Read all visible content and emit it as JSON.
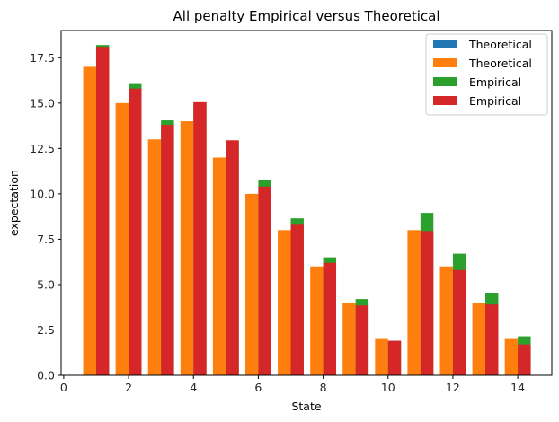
{
  "chart_data": {
    "type": "bar",
    "title": "All penalty Empirical versus Theoretical",
    "xlabel": "State",
    "ylabel": "expectation",
    "xlim": [
      0,
      15
    ],
    "ylim": [
      0,
      19
    ],
    "xticks": [
      0,
      2,
      4,
      6,
      8,
      10,
      12,
      14
    ],
    "yticks": [
      0.0,
      2.5,
      5.0,
      7.5,
      10.0,
      12.5,
      15.0,
      17.5
    ],
    "ytick_labels": [
      "0.0",
      "2.5",
      "5.0",
      "7.5",
      "10.0",
      "12.5",
      "15.0",
      "17.5"
    ],
    "states": [
      1,
      2,
      3,
      4,
      5,
      6,
      7,
      8,
      9,
      10,
      11,
      12,
      13,
      14
    ],
    "legend_position": "top-right",
    "series": [
      {
        "name": "Theoretical",
        "color": "#1f77b4",
        "offset": -0.2,
        "values": [
          0,
          0,
          0,
          0,
          0,
          0,
          0,
          0,
          0,
          0,
          0,
          0,
          0,
          0
        ]
      },
      {
        "name": "Theoretical",
        "color": "#ff7f0e",
        "offset": -0.2,
        "values": [
          17,
          15,
          13,
          14,
          12,
          10,
          8,
          6,
          4,
          2,
          8,
          6,
          4,
          2
        ]
      },
      {
        "name": "Empirical",
        "color": "#2ca02c",
        "offset": 0.2,
        "values": [
          18.2,
          16.1,
          14.05,
          15.0,
          12.9,
          10.75,
          8.65,
          6.5,
          4.2,
          1.9,
          8.95,
          6.7,
          4.55,
          2.15
        ]
      },
      {
        "name": "Empirical",
        "color": "#d62728",
        "offset": 0.2,
        "values": [
          18.1,
          15.8,
          13.8,
          15.05,
          12.95,
          10.4,
          8.3,
          6.2,
          3.85,
          1.9,
          7.95,
          5.8,
          3.9,
          1.7
        ]
      }
    ]
  }
}
